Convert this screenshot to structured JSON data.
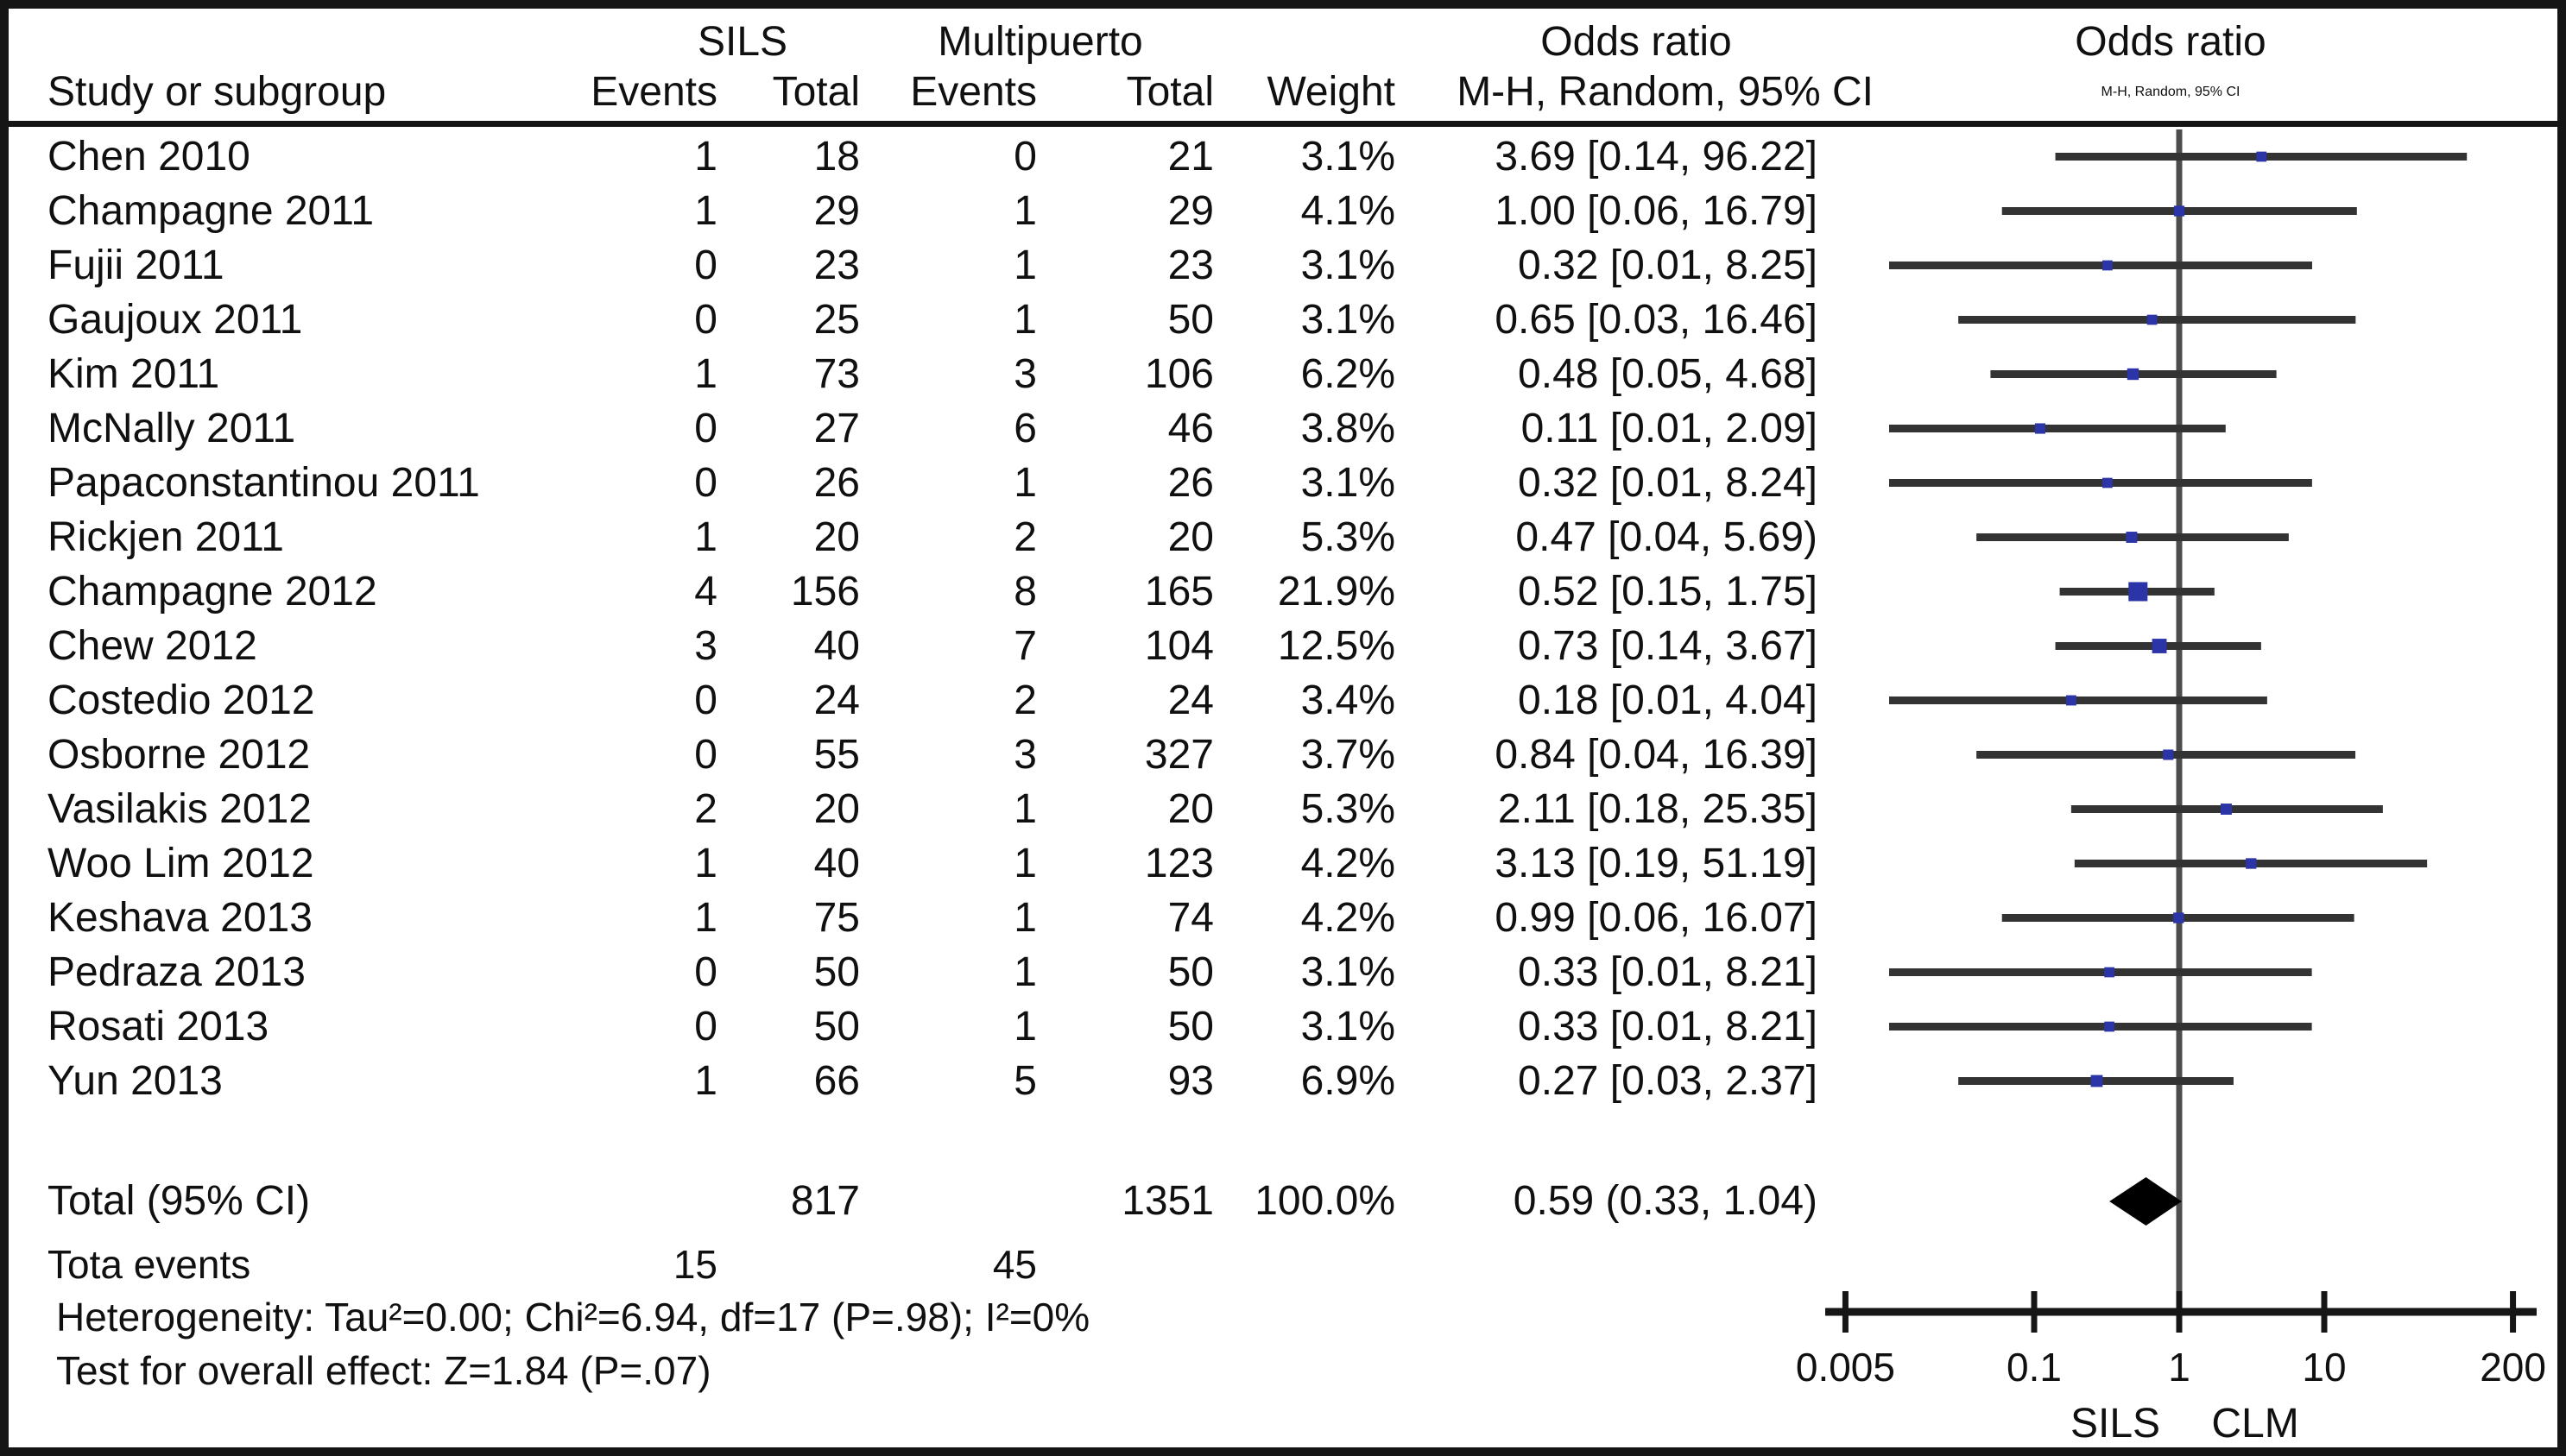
{
  "header": {
    "group_sils": "SILS",
    "group_multi": "Multipuerto",
    "group_or_text": "Odds ratio",
    "group_or_plot": "Odds ratio",
    "study": "Study or subgroup",
    "events_sils": "Events",
    "total_sils": "Total",
    "events_multi": "Events",
    "total_multi": "Total",
    "weight": "Weight",
    "mh_text": "M-H, Random, 95% CI",
    "mh_plot": "M-H, Random, 95% CI"
  },
  "chart_data": {
    "type": "forest",
    "x_scale": "log10",
    "x_ticks": [
      0.005,
      0.1,
      1,
      10,
      200
    ],
    "x_tick_labels": [
      "0.005",
      "0.1",
      "1",
      "10",
      "200"
    ],
    "favours_left": "SILS",
    "favours_right": "CLM",
    "marker_color": "#2c35a8",
    "ci_line_color": "#333333",
    "axis_color": "#161616",
    "studies": [
      {
        "study": "Chen 2010",
        "events_sils": "1",
        "total_sils": "18",
        "events_multi": "0",
        "total_multi": "21",
        "weight": "3.1%",
        "weight_pct": 3.1,
        "or": 3.69,
        "ci_low": 0.14,
        "ci_high": 96.22,
        "or_ci": "3.69 [0.14, 96.22]"
      },
      {
        "study": "Champagne 2011",
        "events_sils": "1",
        "total_sils": "29",
        "events_multi": "1",
        "total_multi": "29",
        "weight": "4.1%",
        "weight_pct": 4.1,
        "or": 1.0,
        "ci_low": 0.06,
        "ci_high": 16.79,
        "or_ci": "1.00 [0.06, 16.79]"
      },
      {
        "study": "Fujii 2011",
        "events_sils": "0",
        "total_sils": "23",
        "events_multi": "1",
        "total_multi": "23",
        "weight": "3.1%",
        "weight_pct": 3.1,
        "or": 0.32,
        "ci_low": 0.01,
        "ci_high": 8.25,
        "or_ci": "0.32 [0.01, 8.25]"
      },
      {
        "study": "Gaujoux 2011",
        "events_sils": "0",
        "total_sils": "25",
        "events_multi": "1",
        "total_multi": "50",
        "weight": "3.1%",
        "weight_pct": 3.1,
        "or": 0.65,
        "ci_low": 0.03,
        "ci_high": 16.46,
        "or_ci": "0.65 [0.03, 16.46]"
      },
      {
        "study": "Kim 2011",
        "events_sils": "1",
        "total_sils": "73",
        "events_multi": "3",
        "total_multi": "106",
        "weight": "6.2%",
        "weight_pct": 6.2,
        "or": 0.48,
        "ci_low": 0.05,
        "ci_high": 4.68,
        "or_ci": "0.48 [0.05, 4.68]"
      },
      {
        "study": "McNally 2011",
        "events_sils": "0",
        "total_sils": "27",
        "events_multi": "6",
        "total_multi": "46",
        "weight": "3.8%",
        "weight_pct": 3.8,
        "or": 0.11,
        "ci_low": 0.01,
        "ci_high": 2.09,
        "or_ci": "0.11 [0.01, 2.09]"
      },
      {
        "study": "Papaconstantinou 2011",
        "events_sils": "0",
        "total_sils": "26",
        "events_multi": "1",
        "total_multi": "26",
        "weight": "3.1%",
        "weight_pct": 3.1,
        "or": 0.32,
        "ci_low": 0.01,
        "ci_high": 8.24,
        "or_ci": "0.32 [0.01, 8.24]"
      },
      {
        "study": "Rickjen 2011",
        "events_sils": "1",
        "total_sils": "20",
        "events_multi": "2",
        "total_multi": "20",
        "weight": "5.3%",
        "weight_pct": 5.3,
        "or": 0.47,
        "ci_low": 0.04,
        "ci_high": 5.69,
        "or_ci": "0.47 [0.04, 5.69)"
      },
      {
        "study": "Champagne 2012",
        "events_sils": "4",
        "total_sils": "156",
        "events_multi": "8",
        "total_multi": "165",
        "weight": "21.9%",
        "weight_pct": 21.9,
        "or": 0.52,
        "ci_low": 0.15,
        "ci_high": 1.75,
        "or_ci": "0.52 [0.15, 1.75]"
      },
      {
        "study": "Chew 2012",
        "events_sils": "3",
        "total_sils": "40",
        "events_multi": "7",
        "total_multi": "104",
        "weight": "12.5%",
        "weight_pct": 12.5,
        "or": 0.73,
        "ci_low": 0.14,
        "ci_high": 3.67,
        "or_ci": "0.73 [0.14, 3.67]"
      },
      {
        "study": "Costedio 2012",
        "events_sils": "0",
        "total_sils": "24",
        "events_multi": "2",
        "total_multi": "24",
        "weight": "3.4%",
        "weight_pct": 3.4,
        "or": 0.18,
        "ci_low": 0.01,
        "ci_high": 4.04,
        "or_ci": "0.18 [0.01, 4.04]"
      },
      {
        "study": "Osborne 2012",
        "events_sils": "0",
        "total_sils": "55",
        "events_multi": "3",
        "total_multi": "327",
        "weight": "3.7%",
        "weight_pct": 3.7,
        "or": 0.84,
        "ci_low": 0.04,
        "ci_high": 16.39,
        "or_ci": "0.84 [0.04, 16.39]"
      },
      {
        "study": "Vasilakis 2012",
        "events_sils": "2",
        "total_sils": "20",
        "events_multi": "1",
        "total_multi": "20",
        "weight": "5.3%",
        "weight_pct": 5.3,
        "or": 2.11,
        "ci_low": 0.18,
        "ci_high": 25.35,
        "or_ci": "2.11 [0.18, 25.35]"
      },
      {
        "study": "Woo Lim 2012",
        "events_sils": "1",
        "total_sils": "40",
        "events_multi": "1",
        "total_multi": "123",
        "weight": "4.2%",
        "weight_pct": 4.2,
        "or": 3.13,
        "ci_low": 0.19,
        "ci_high": 51.19,
        "or_ci": "3.13 [0.19, 51.19]"
      },
      {
        "study": "Keshava 2013",
        "events_sils": "1",
        "total_sils": "75",
        "events_multi": "1",
        "total_multi": "74",
        "weight": "4.2%",
        "weight_pct": 4.2,
        "or": 0.99,
        "ci_low": 0.06,
        "ci_high": 16.07,
        "or_ci": "0.99 [0.06, 16.07]"
      },
      {
        "study": "Pedraza 2013",
        "events_sils": "0",
        "total_sils": "50",
        "events_multi": "1",
        "total_multi": "50",
        "weight": "3.1%",
        "weight_pct": 3.1,
        "or": 0.33,
        "ci_low": 0.01,
        "ci_high": 8.21,
        "or_ci": "0.33 [0.01, 8.21]"
      },
      {
        "study": "Rosati 2013",
        "events_sils": "0",
        "total_sils": "50",
        "events_multi": "1",
        "total_multi": "50",
        "weight": "3.1%",
        "weight_pct": 3.1,
        "or": 0.33,
        "ci_low": 0.01,
        "ci_high": 8.21,
        "or_ci": "0.33 [0.01, 8.21]"
      },
      {
        "study": "Yun 2013",
        "events_sils": "1",
        "total_sils": "66",
        "events_multi": "5",
        "total_multi": "93",
        "weight": "6.9%",
        "weight_pct": 6.9,
        "or": 0.27,
        "ci_low": 0.03,
        "ci_high": 2.37,
        "or_ci": "0.27 [0.03, 2.37]"
      }
    ],
    "total": {
      "label": "Total (95% CI)",
      "total_sils": "817",
      "total_multi": "1351",
      "weight": "100.0%",
      "or": 0.59,
      "ci_low": 0.33,
      "ci_high": 1.04,
      "or_ci": "0.59 (0.33, 1.04)"
    }
  },
  "footer": {
    "total_events_label": "Tota events",
    "total_events_sils": "15",
    "total_events_multi": "45",
    "heterogeneity": "Heterogeneity: Tau²=0.00; Chi²=6.94, df=17 (P=.98); I²=0%",
    "overall_effect": "Test for overall effect: Z=1.84 (P=.07)"
  }
}
